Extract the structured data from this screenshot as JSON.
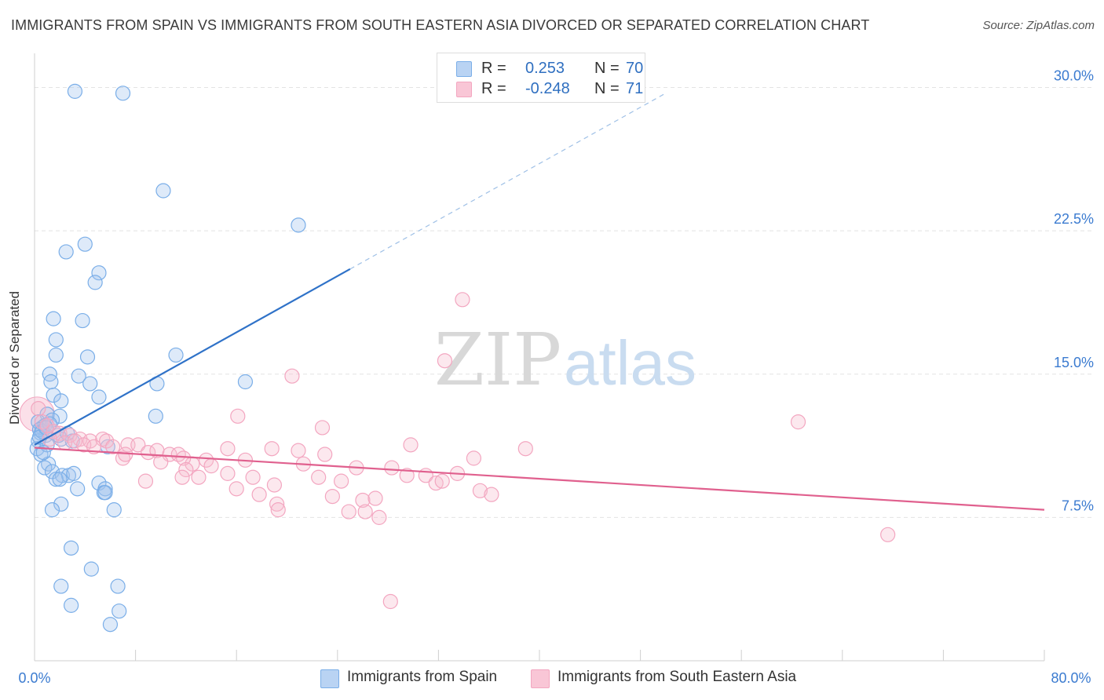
{
  "title": "IMMIGRANTS FROM SPAIN VS IMMIGRANTS FROM SOUTH EASTERN ASIA DIVORCED OR SEPARATED CORRELATION CHART",
  "source": "Source: ZipAtlas.com",
  "watermark": {
    "zip": "ZIP",
    "atlas": "atlas"
  },
  "legend": {
    "rows": [
      {
        "r_label": "R =",
        "r_value": "0.253",
        "n_label": "N =",
        "n_value": "70"
      },
      {
        "r_label": "R =",
        "r_value": "-0.248",
        "n_label": "N =",
        "n_value": "71"
      }
    ]
  },
  "chart_data": {
    "type": "scatter",
    "title": "IMMIGRANTS FROM SPAIN VS IMMIGRANTS FROM SOUTH EASTERN ASIA DIVORCED OR SEPARATED CORRELATION CHART",
    "xlabel": "",
    "ylabel": "Divorced or Separated",
    "xlim": [
      0,
      80
    ],
    "ylim": [
      0,
      31.5
    ],
    "x_tick_labels": [
      "0.0%",
      "80.0%"
    ],
    "y_ticks": [
      7.5,
      15.0,
      22.5,
      30.0
    ],
    "y_tick_labels": [
      "7.5%",
      "15.0%",
      "22.5%",
      "30.0%"
    ],
    "grid": "horizontal dashed",
    "legend_position": "bottom",
    "series": [
      {
        "name": "Immigrants from Spain",
        "color": "#7aaee8",
        "line_color": "#2f72c8",
        "trend": {
          "x0": 0,
          "y0": 11.3,
          "x1": 25,
          "y1": 20.5,
          "dash_to_x": 50,
          "dash_to_y": 29.7
        },
        "points": [
          [
            3.2,
            29.8
          ],
          [
            7.0,
            29.7
          ],
          [
            10.2,
            24.6
          ],
          [
            20.9,
            22.8
          ],
          [
            2.5,
            21.4
          ],
          [
            4.0,
            21.8
          ],
          [
            5.1,
            20.3
          ],
          [
            4.8,
            19.8
          ],
          [
            1.5,
            17.9
          ],
          [
            3.8,
            17.8
          ],
          [
            1.7,
            16.8
          ],
          [
            1.7,
            16.0
          ],
          [
            4.2,
            15.9
          ],
          [
            11.2,
            16.0
          ],
          [
            1.2,
            15.0
          ],
          [
            3.5,
            14.9
          ],
          [
            4.4,
            14.5
          ],
          [
            1.3,
            14.6
          ],
          [
            9.7,
            14.5
          ],
          [
            16.7,
            14.6
          ],
          [
            1.5,
            13.9
          ],
          [
            5.1,
            13.8
          ],
          [
            2.1,
            13.6
          ],
          [
            9.6,
            12.8
          ],
          [
            1.0,
            12.9
          ],
          [
            2.0,
            12.8
          ],
          [
            0.3,
            12.5
          ],
          [
            0.6,
            12.2
          ],
          [
            1.4,
            12.6
          ],
          [
            0.8,
            12.3
          ],
          [
            0.5,
            11.9
          ],
          [
            0.9,
            11.8
          ],
          [
            0.3,
            11.5
          ],
          [
            2.1,
            11.6
          ],
          [
            3.0,
            11.5
          ],
          [
            0.2,
            11.1
          ],
          [
            0.5,
            10.8
          ],
          [
            1.1,
            10.3
          ],
          [
            0.8,
            10.1
          ],
          [
            1.4,
            9.9
          ],
          [
            2.2,
            9.7
          ],
          [
            2.7,
            9.7
          ],
          [
            3.1,
            9.8
          ],
          [
            1.7,
            9.5
          ],
          [
            2.0,
            9.5
          ],
          [
            5.1,
            9.3
          ],
          [
            5.6,
            9.0
          ],
          [
            3.4,
            9.0
          ],
          [
            5.5,
            8.8
          ],
          [
            5.6,
            8.8
          ],
          [
            2.1,
            8.2
          ],
          [
            1.4,
            7.9
          ],
          [
            6.3,
            7.9
          ],
          [
            2.9,
            5.9
          ],
          [
            4.5,
            4.8
          ],
          [
            2.1,
            3.9
          ],
          [
            6.6,
            3.9
          ],
          [
            2.9,
            2.9
          ],
          [
            6.7,
            2.6
          ],
          [
            6.0,
            1.9
          ],
          [
            5.8,
            11.2
          ],
          [
            0.4,
            12.1
          ],
          [
            1.0,
            11.3
          ],
          [
            0.7,
            10.9
          ],
          [
            1.9,
            11.8
          ],
          [
            0.6,
            12.0
          ],
          [
            2.6,
            11.9
          ],
          [
            1.2,
            12.4
          ],
          [
            0.4,
            11.7
          ],
          [
            0.9,
            12.2
          ]
        ]
      },
      {
        "name": "Immigrants from South Eastern Asia",
        "color": "#f3a6c0",
        "line_color": "#e0608e",
        "trend": {
          "x0": 0,
          "y0": 11.15,
          "x1": 80,
          "y1": 7.9
        },
        "points": [
          [
            0.3,
            13.2
          ],
          [
            0.6,
            12.5
          ],
          [
            1.0,
            12.3
          ],
          [
            1.5,
            12.0
          ],
          [
            2.0,
            11.9
          ],
          [
            2.8,
            11.8
          ],
          [
            3.6,
            11.6
          ],
          [
            4.4,
            11.5
          ],
          [
            5.4,
            11.6
          ],
          [
            1.2,
            11.6
          ],
          [
            2.4,
            11.4
          ],
          [
            3.2,
            11.5
          ],
          [
            3.9,
            11.3
          ],
          [
            4.7,
            11.2
          ],
          [
            5.7,
            11.5
          ],
          [
            6.2,
            11.2
          ],
          [
            7.4,
            11.3
          ],
          [
            8.2,
            11.3
          ],
          [
            9.0,
            10.9
          ],
          [
            9.7,
            11.0
          ],
          [
            10.7,
            10.8
          ],
          [
            11.4,
            10.8
          ],
          [
            12.5,
            10.3
          ],
          [
            13.6,
            10.5
          ],
          [
            15.3,
            11.1
          ],
          [
            16.7,
            10.5
          ],
          [
            18.8,
            11.1
          ],
          [
            20.9,
            11.0
          ],
          [
            23.0,
            10.8
          ],
          [
            7.0,
            10.6
          ],
          [
            7.2,
            10.8
          ],
          [
            10.0,
            10.4
          ],
          [
            11.8,
            10.6
          ],
          [
            14.0,
            10.2
          ],
          [
            12.0,
            10.0
          ],
          [
            15.3,
            9.8
          ],
          [
            17.3,
            9.6
          ],
          [
            19.0,
            9.2
          ],
          [
            21.3,
            10.3
          ],
          [
            22.5,
            9.6
          ],
          [
            24.3,
            9.4
          ],
          [
            25.5,
            10.1
          ],
          [
            28.3,
            10.1
          ],
          [
            29.5,
            9.7
          ],
          [
            31.0,
            9.7
          ],
          [
            31.8,
            9.3
          ],
          [
            32.3,
            9.4
          ],
          [
            33.5,
            9.8
          ],
          [
            35.3,
            8.9
          ],
          [
            36.2,
            8.7
          ],
          [
            8.8,
            9.4
          ],
          [
            11.7,
            9.6
          ],
          [
            13.0,
            9.6
          ],
          [
            16.0,
            9.0
          ],
          [
            17.8,
            8.7
          ],
          [
            19.2,
            8.2
          ],
          [
            19.3,
            7.9
          ],
          [
            23.6,
            8.6
          ],
          [
            26.0,
            8.4
          ],
          [
            27.0,
            8.5
          ],
          [
            24.9,
            7.8
          ],
          [
            26.2,
            7.8
          ],
          [
            27.3,
            7.5
          ],
          [
            16.1,
            12.8
          ],
          [
            22.8,
            12.2
          ],
          [
            29.8,
            11.3
          ],
          [
            34.8,
            10.6
          ],
          [
            38.9,
            11.1
          ],
          [
            60.5,
            12.5
          ],
          [
            32.5,
            15.7
          ],
          [
            33.9,
            18.9
          ]
        ],
        "extra_points": [
          [
            20.4,
            14.9
          ],
          [
            67.6,
            6.6
          ],
          [
            28.2,
            3.1
          ]
        ]
      }
    ]
  },
  "bottom_legend": [
    {
      "label": "Immigrants from Spain"
    },
    {
      "label": "Immigrants from South Eastern Asia"
    }
  ]
}
